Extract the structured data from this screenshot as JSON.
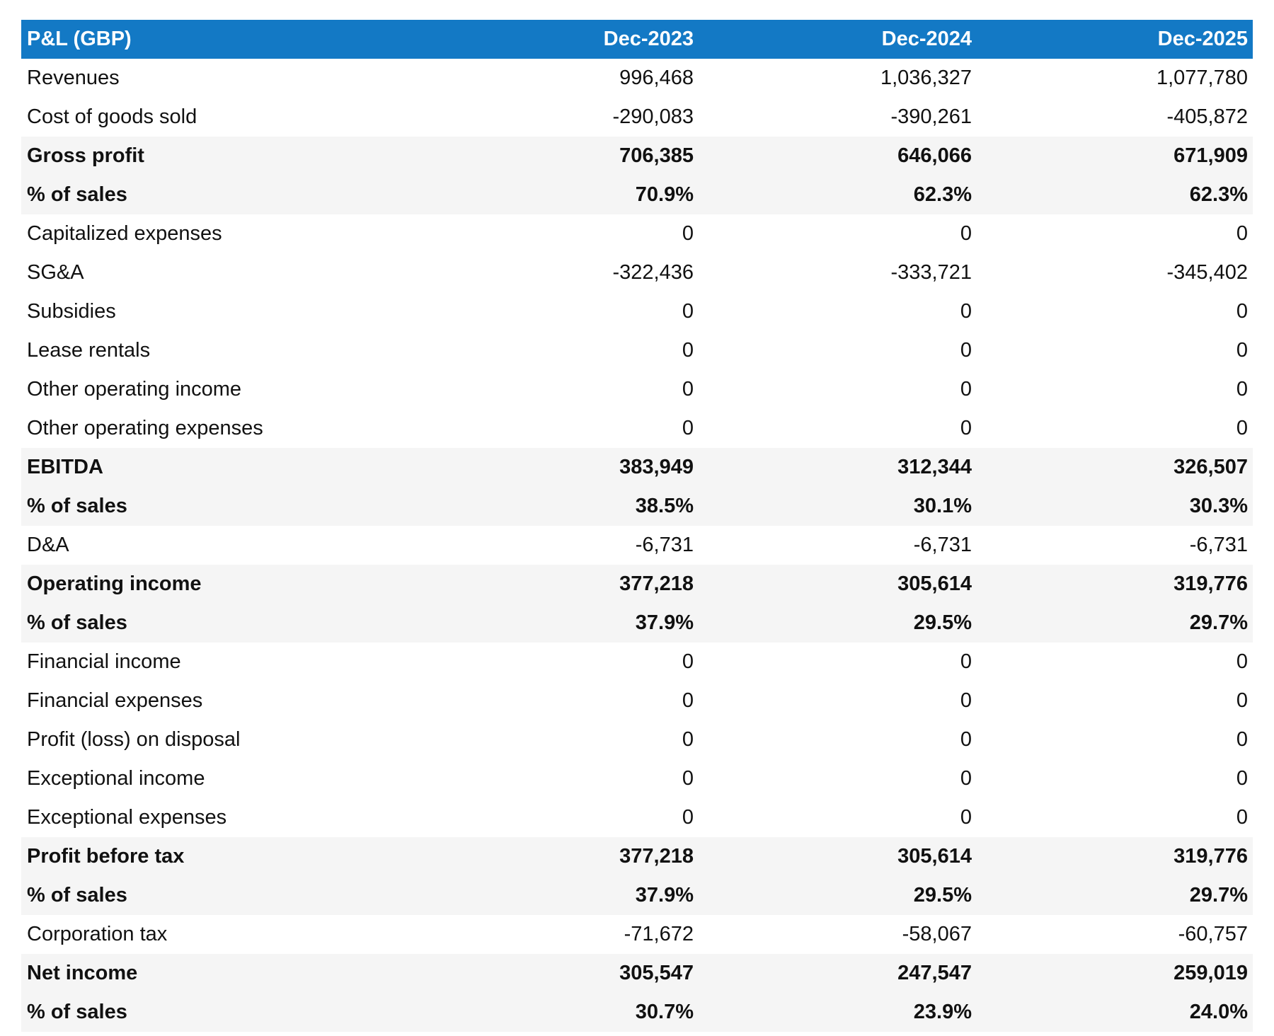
{
  "table": {
    "header": [
      "P&L (GBP)",
      "Dec-2023",
      "Dec-2024",
      "Dec-2025"
    ],
    "rows": [
      {
        "label": "Revenues",
        "values": [
          "996,468",
          "1,036,327",
          "1,077,780"
        ]
      },
      {
        "label": "Cost of goods sold",
        "values": [
          "-290,083",
          "-390,261",
          "-405,872"
        ]
      },
      {
        "label": "Gross profit",
        "values": [
          "706,385",
          "646,066",
          "671,909"
        ],
        "bold": true
      },
      {
        "label": "% of sales",
        "values": [
          "70.9%",
          "62.3%",
          "62.3%"
        ],
        "bold": true
      },
      {
        "label": "Capitalized expenses",
        "values": [
          "0",
          "0",
          "0"
        ]
      },
      {
        "label": "SG&A",
        "values": [
          "-322,436",
          "-333,721",
          "-345,402"
        ]
      },
      {
        "label": "Subsidies",
        "values": [
          "0",
          "0",
          "0"
        ]
      },
      {
        "label": "Lease rentals",
        "values": [
          "0",
          "0",
          "0"
        ]
      },
      {
        "label": "Other operating income",
        "values": [
          "0",
          "0",
          "0"
        ]
      },
      {
        "label": "Other operating expenses",
        "values": [
          "0",
          "0",
          "0"
        ]
      },
      {
        "label": "EBITDA",
        "values": [
          "383,949",
          "312,344",
          "326,507"
        ],
        "bold": true
      },
      {
        "label": "% of sales",
        "values": [
          "38.5%",
          "30.1%",
          "30.3%"
        ],
        "bold": true
      },
      {
        "label": "D&A",
        "values": [
          "-6,731",
          "-6,731",
          "-6,731"
        ]
      },
      {
        "label": "Operating income",
        "values": [
          "377,218",
          "305,614",
          "319,776"
        ],
        "bold": true
      },
      {
        "label": "% of sales",
        "values": [
          "37.9%",
          "29.5%",
          "29.7%"
        ],
        "bold": true
      },
      {
        "label": "Financial income",
        "values": [
          "0",
          "0",
          "0"
        ]
      },
      {
        "label": "Financial expenses",
        "values": [
          "0",
          "0",
          "0"
        ]
      },
      {
        "label": "Profit (loss) on disposal",
        "values": [
          "0",
          "0",
          "0"
        ]
      },
      {
        "label": "Exceptional income",
        "values": [
          "0",
          "0",
          "0"
        ]
      },
      {
        "label": "Exceptional expenses",
        "values": [
          "0",
          "0",
          "0"
        ]
      },
      {
        "label": "Profit before tax",
        "values": [
          "377,218",
          "305,614",
          "319,776"
        ],
        "bold": true
      },
      {
        "label": "% of sales",
        "values": [
          "37.9%",
          "29.5%",
          "29.7%"
        ],
        "bold": true
      },
      {
        "label": "Corporation tax",
        "values": [
          "-71,672",
          "-58,067",
          "-60,757"
        ]
      },
      {
        "label": "Net income",
        "values": [
          "305,547",
          "247,547",
          "259,019"
        ],
        "bold": true
      },
      {
        "label": "% of sales",
        "values": [
          "30.7%",
          "23.9%",
          "24.0%"
        ],
        "bold": true
      }
    ]
  }
}
